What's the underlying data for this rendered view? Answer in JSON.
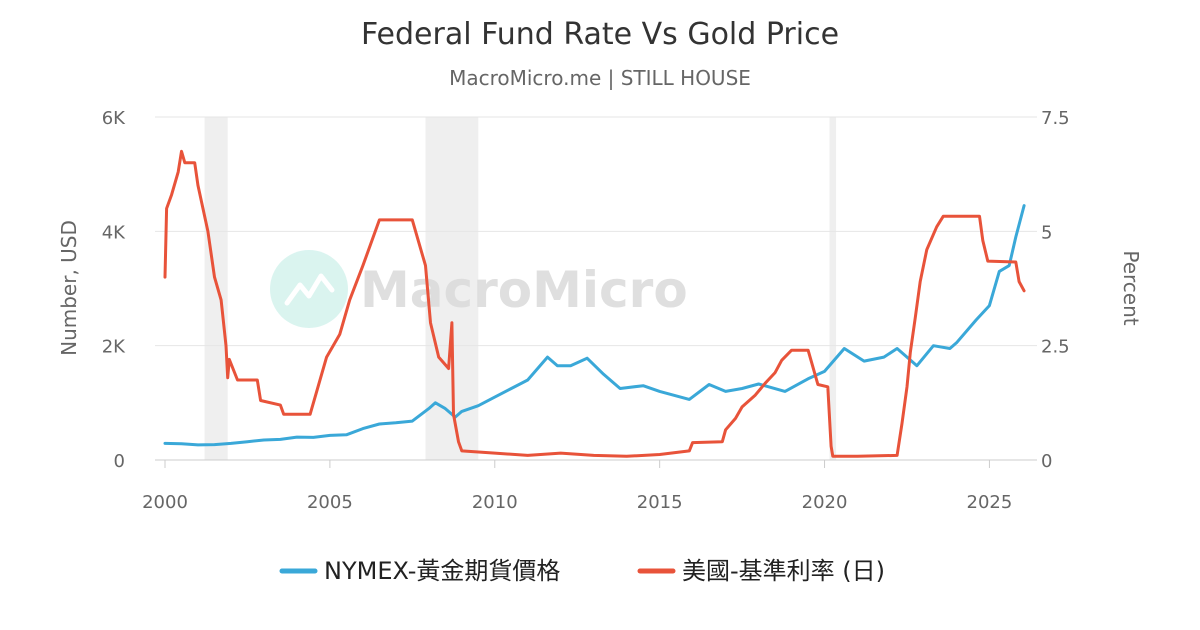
{
  "chart_data": {
    "type": "line",
    "title": "Federal Fund Rate Vs Gold Price",
    "subtitle": "MacroMicro.me | STILL HOUSE",
    "watermark": "MacroMicro",
    "y_left_label": "Number, USD",
    "y_right_label": "Percent",
    "x_range": [
      2000,
      2026.2
    ],
    "y_left_range": [
      0,
      6000
    ],
    "y_right_range": [
      0,
      7.5
    ],
    "x_ticks": [
      2000,
      2005,
      2010,
      2015,
      2020,
      2025
    ],
    "y_left_ticks": [
      {
        "value": 0,
        "label": "0"
      },
      {
        "value": 2000,
        "label": "2K"
      },
      {
        "value": 4000,
        "label": "4K"
      },
      {
        "value": 6000,
        "label": "6K"
      }
    ],
    "y_right_ticks": [
      {
        "value": 0,
        "label": "0"
      },
      {
        "value": 2.5,
        "label": "2.5"
      },
      {
        "value": 5,
        "label": "5"
      },
      {
        "value": 7.5,
        "label": "7.5"
      }
    ],
    "recessions": [
      [
        2001.2,
        2001.9
      ],
      [
        2007.9,
        2009.5
      ],
      [
        2020.15,
        2020.35
      ]
    ],
    "grid": "horizontal",
    "legend_position": "bottom",
    "series": [
      {
        "name": "NYMEX-黃金期貨價格",
        "axis": "left",
        "color": "#3aa8d8",
        "points": [
          [
            2000.0,
            290
          ],
          [
            2000.5,
            285
          ],
          [
            2001.0,
            265
          ],
          [
            2001.5,
            270
          ],
          [
            2002.0,
            290
          ],
          [
            2002.5,
            320
          ],
          [
            2003.0,
            350
          ],
          [
            2003.5,
            360
          ],
          [
            2004.0,
            400
          ],
          [
            2004.5,
            395
          ],
          [
            2005.0,
            430
          ],
          [
            2005.5,
            440
          ],
          [
            2006.0,
            550
          ],
          [
            2006.5,
            630
          ],
          [
            2007.0,
            650
          ],
          [
            2007.5,
            680
          ],
          [
            2008.0,
            900
          ],
          [
            2008.2,
            1000
          ],
          [
            2008.5,
            900
          ],
          [
            2008.8,
            750
          ],
          [
            2009.0,
            850
          ],
          [
            2009.5,
            950
          ],
          [
            2010.0,
            1100
          ],
          [
            2010.5,
            1250
          ],
          [
            2011.0,
            1400
          ],
          [
            2011.6,
            1800
          ],
          [
            2011.9,
            1650
          ],
          [
            2012.3,
            1650
          ],
          [
            2012.8,
            1780
          ],
          [
            2013.3,
            1500
          ],
          [
            2013.8,
            1250
          ],
          [
            2014.5,
            1300
          ],
          [
            2015.0,
            1200
          ],
          [
            2015.9,
            1060
          ],
          [
            2016.5,
            1320
          ],
          [
            2017.0,
            1200
          ],
          [
            2017.5,
            1250
          ],
          [
            2018.0,
            1330
          ],
          [
            2018.8,
            1200
          ],
          [
            2019.5,
            1420
          ],
          [
            2020.0,
            1550
          ],
          [
            2020.6,
            1950
          ],
          [
            2021.2,
            1730
          ],
          [
            2021.8,
            1800
          ],
          [
            2022.2,
            1950
          ],
          [
            2022.8,
            1650
          ],
          [
            2023.3,
            2000
          ],
          [
            2023.8,
            1950
          ],
          [
            2024.0,
            2050
          ],
          [
            2024.6,
            2450
          ],
          [
            2025.0,
            2700
          ],
          [
            2025.3,
            3300
          ],
          [
            2025.6,
            3400
          ],
          [
            2025.8,
            3900
          ],
          [
            2026.05,
            4450
          ]
        ]
      },
      {
        "name": "美國-基準利率 (日)",
        "axis": "right",
        "color": "#e8533a",
        "points": [
          [
            2000.0,
            4.0
          ],
          [
            2000.05,
            5.5
          ],
          [
            2000.2,
            5.8
          ],
          [
            2000.4,
            6.3
          ],
          [
            2000.5,
            6.75
          ],
          [
            2000.6,
            6.5
          ],
          [
            2000.9,
            6.5
          ],
          [
            2001.0,
            6.0
          ],
          [
            2001.3,
            5.0
          ],
          [
            2001.5,
            4.0
          ],
          [
            2001.7,
            3.5
          ],
          [
            2001.85,
            2.5
          ],
          [
            2001.9,
            1.8
          ],
          [
            2001.95,
            2.2
          ],
          [
            2002.2,
            1.75
          ],
          [
            2002.8,
            1.75
          ],
          [
            2002.9,
            1.3
          ],
          [
            2003.5,
            1.2
          ],
          [
            2003.6,
            1.0
          ],
          [
            2004.4,
            1.0
          ],
          [
            2004.6,
            1.5
          ],
          [
            2004.9,
            2.25
          ],
          [
            2005.3,
            2.75
          ],
          [
            2005.6,
            3.5
          ],
          [
            2006.0,
            4.25
          ],
          [
            2006.5,
            5.25
          ],
          [
            2007.5,
            5.25
          ],
          [
            2007.7,
            4.75
          ],
          [
            2007.9,
            4.25
          ],
          [
            2008.05,
            3.0
          ],
          [
            2008.3,
            2.25
          ],
          [
            2008.6,
            2.0
          ],
          [
            2008.7,
            3.0
          ],
          [
            2008.75,
            1.0
          ],
          [
            2008.9,
            0.4
          ],
          [
            2009.0,
            0.2
          ],
          [
            2010.0,
            0.15
          ],
          [
            2011.0,
            0.1
          ],
          [
            2012.0,
            0.15
          ],
          [
            2013.0,
            0.1
          ],
          [
            2014.0,
            0.08
          ],
          [
            2015.0,
            0.12
          ],
          [
            2015.9,
            0.2
          ],
          [
            2016.0,
            0.38
          ],
          [
            2016.9,
            0.4
          ],
          [
            2017.0,
            0.66
          ],
          [
            2017.3,
            0.91
          ],
          [
            2017.5,
            1.16
          ],
          [
            2017.9,
            1.42
          ],
          [
            2018.2,
            1.68
          ],
          [
            2018.5,
            1.91
          ],
          [
            2018.7,
            2.18
          ],
          [
            2019.0,
            2.4
          ],
          [
            2019.5,
            2.4
          ],
          [
            2019.6,
            2.15
          ],
          [
            2019.8,
            1.65
          ],
          [
            2020.1,
            1.6
          ],
          [
            2020.2,
            0.3
          ],
          [
            2020.25,
            0.08
          ],
          [
            2021.0,
            0.08
          ],
          [
            2022.2,
            0.1
          ],
          [
            2022.35,
            0.8
          ],
          [
            2022.5,
            1.6
          ],
          [
            2022.6,
            2.35
          ],
          [
            2022.75,
            3.1
          ],
          [
            2022.9,
            3.9
          ],
          [
            2023.1,
            4.6
          ],
          [
            2023.4,
            5.1
          ],
          [
            2023.6,
            5.33
          ],
          [
            2024.7,
            5.33
          ],
          [
            2024.8,
            4.8
          ],
          [
            2024.95,
            4.35
          ],
          [
            2025.8,
            4.33
          ],
          [
            2025.9,
            3.9
          ],
          [
            2026.05,
            3.7
          ]
        ]
      }
    ]
  }
}
